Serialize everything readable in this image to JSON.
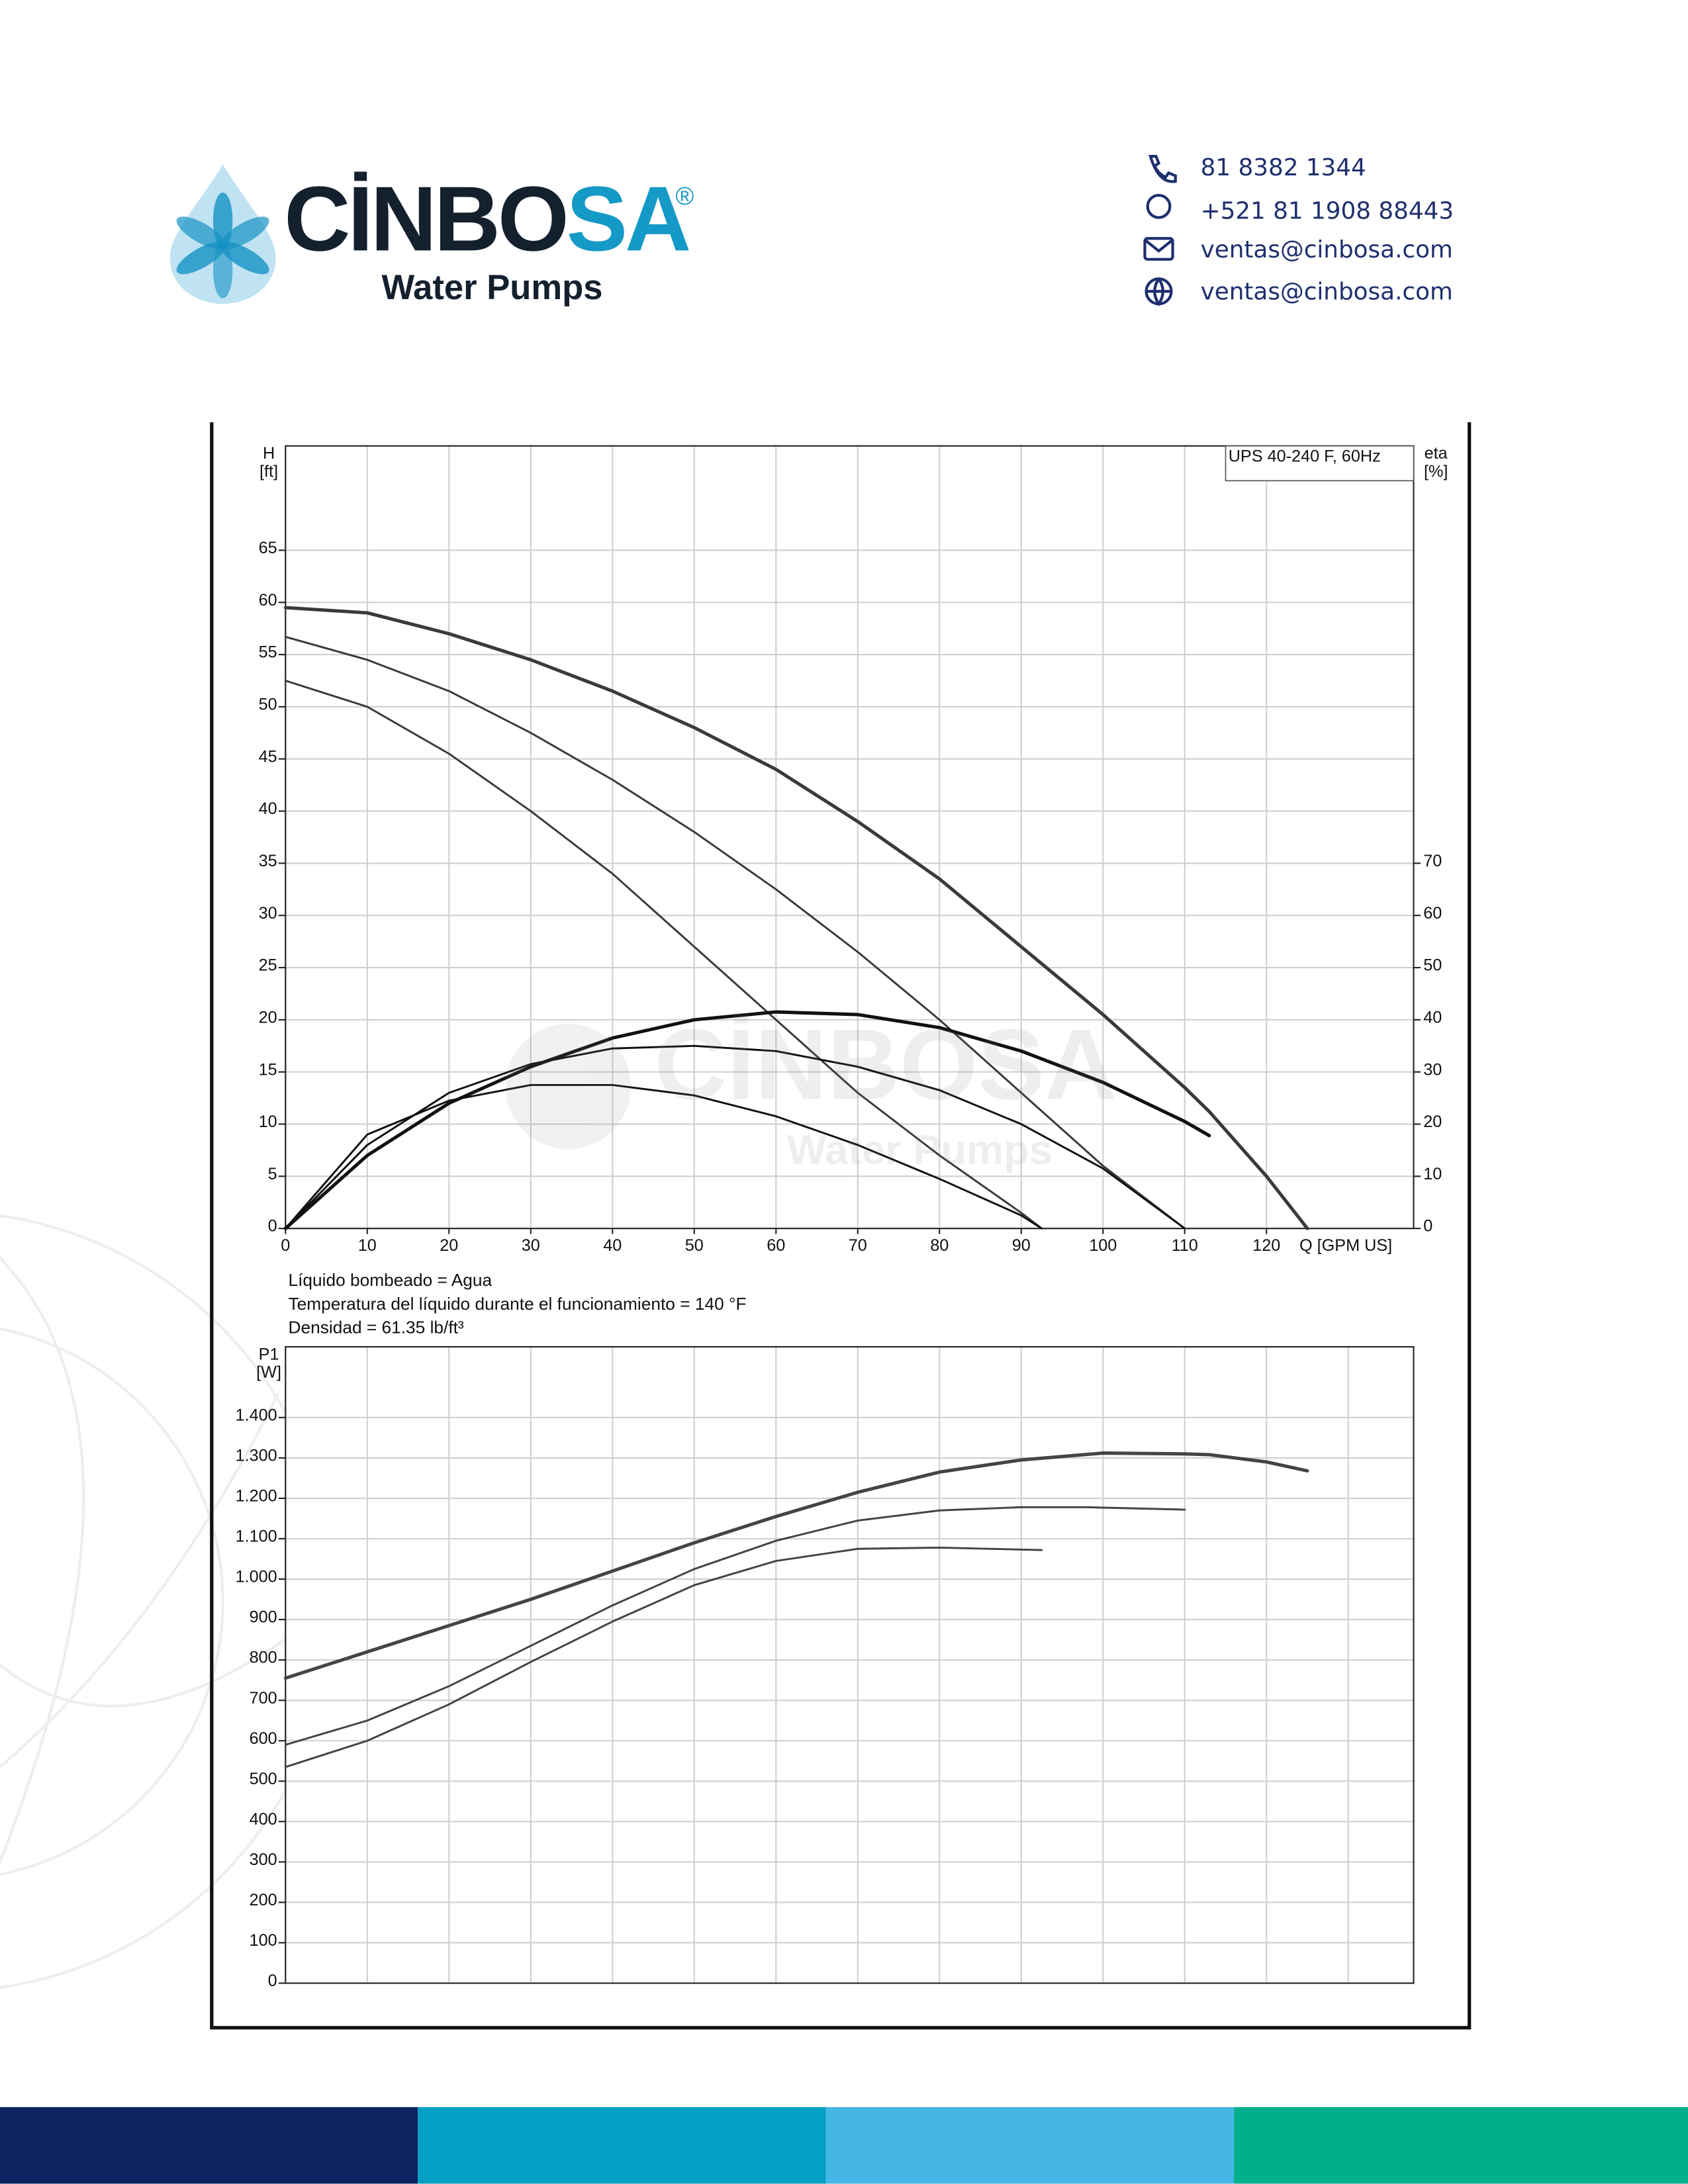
{
  "header": {
    "brand_main": "CİNBO",
    "brand_accent": "SA",
    "registered": "®",
    "tagline": "Water Pumps",
    "contacts": [
      "81 8382 1344",
      "+521 81 1908 88443",
      "ventas@cinbosa.com",
      "ventas@cinbosa.com"
    ]
  },
  "notes": [
    "Líquido bombeado = Agua",
    "Temperatura del líquido durante el funcionamiento = 140 °F",
    "Densidad = 61.35 lb/ft³"
  ],
  "chart_data": [
    {
      "type": "line",
      "title": "UPS 40-240 F, 60Hz",
      "xlabel": "Q [GPM US]",
      "ylabel": [
        "H",
        "[ft]"
      ],
      "y2label": [
        "eta",
        "[%]"
      ],
      "xlim": [
        0,
        138
      ],
      "xticks": [
        0,
        10,
        20,
        30,
        40,
        50,
        60,
        70,
        80,
        90,
        100,
        110,
        120
      ],
      "ylim": [
        0,
        75
      ],
      "yticks": [
        0,
        5,
        10,
        15,
        20,
        25,
        30,
        35,
        40,
        45,
        50,
        55,
        60,
        65
      ],
      "y2lim": [
        0,
        150
      ],
      "y2ticks": [
        0,
        10,
        20,
        30,
        40,
        50,
        60,
        70
      ],
      "grid": true,
      "series": [
        {
          "color": "#3a3a3a",
          "x": [
            0,
            10,
            20,
            30,
            40,
            50,
            60,
            70,
            80,
            90,
            100,
            110,
            113,
            120,
            125
          ],
          "values": [
            59.5,
            59,
            57,
            54.5,
            51.5,
            48,
            44,
            39,
            33.5,
            27,
            20.5,
            13.5,
            11.2,
            5,
            0
          ]
        },
        {
          "color": "#3a3a3a",
          "x": [
            0,
            10,
            20,
            30,
            40,
            50,
            60,
            70,
            80,
            90,
            100,
            110
          ],
          "values": [
            56.7,
            54.5,
            51.5,
            47.5,
            43,
            38,
            32.5,
            26.5,
            20,
            13,
            6,
            0
          ]
        },
        {
          "color": "#3a3a3a",
          "x": [
            0,
            10,
            20,
            30,
            40,
            50,
            60,
            70,
            80,
            90,
            92.5
          ],
          "values": [
            52.5,
            50,
            45.5,
            40,
            34,
            27,
            20,
            13,
            7,
            1.5,
            0
          ]
        },
        {
          "color": "#111111",
          "axis": "y2",
          "x": [
            0,
            10,
            20,
            30,
            40,
            50,
            60,
            70,
            80,
            90,
            100,
            110,
            113
          ],
          "values": [
            0,
            14,
            24,
            31,
            36.5,
            40,
            41.5,
            41,
            38.5,
            34,
            28,
            20.5,
            17.8
          ]
        },
        {
          "color": "#111111",
          "axis": "y2",
          "x": [
            0,
            10,
            20,
            30,
            40,
            50,
            60,
            70,
            80,
            90,
            100,
            110
          ],
          "values": [
            0,
            16,
            26,
            31.5,
            34.5,
            35,
            34,
            31,
            26.5,
            20,
            11.5,
            0
          ]
        },
        {
          "color": "#111111",
          "axis": "y2",
          "x": [
            0,
            10,
            20,
            30,
            40,
            50,
            60,
            70,
            80,
            90,
            92.5
          ],
          "values": [
            0,
            18,
            24.5,
            27.5,
            27.5,
            25.5,
            21.5,
            16,
            9.5,
            2.5,
            0
          ]
        }
      ]
    },
    {
      "type": "line",
      "ylabel": [
        "P1",
        "[W]"
      ],
      "xlim": [
        0,
        138
      ],
      "xticks": [
        0,
        10,
        20,
        30,
        40,
        50,
        60,
        70,
        80,
        90,
        100,
        110,
        120,
        130
      ],
      "xtick_labels": false,
      "ylim": [
        0,
        1575
      ],
      "yticks": [
        0,
        100,
        200,
        300,
        400,
        500,
        600,
        700,
        800,
        900,
        {
          "value": 1000,
          "label": "1.000"
        },
        {
          "value": 1100,
          "label": "1.100"
        },
        {
          "value": 1200,
          "label": "1.200"
        },
        {
          "value": 1300,
          "label": "1.300"
        },
        {
          "value": 1400,
          "label": "1.400"
        }
      ],
      "grid": true,
      "series": [
        {
          "color": "#444444",
          "x": [
            0,
            10,
            20,
            30,
            40,
            50,
            60,
            70,
            80,
            90,
            100,
            110,
            113,
            120,
            125
          ],
          "values": [
            755,
            820,
            885,
            950,
            1020,
            1090,
            1155,
            1215,
            1265,
            1295,
            1312,
            1310,
            1308,
            1290,
            1268
          ]
        },
        {
          "color": "#444444",
          "x": [
            0,
            10,
            20,
            30,
            40,
            50,
            60,
            70,
            80,
            90,
            98,
            110
          ],
          "values": [
            590,
            650,
            735,
            835,
            935,
            1025,
            1095,
            1145,
            1170,
            1178,
            1178,
            1172
          ]
        },
        {
          "color": "#444444",
          "x": [
            0,
            10,
            20,
            30,
            40,
            50,
            60,
            70,
            80,
            92.5
          ],
          "values": [
            535,
            600,
            690,
            795,
            895,
            985,
            1045,
            1075,
            1078,
            1072
          ]
        }
      ]
    }
  ]
}
